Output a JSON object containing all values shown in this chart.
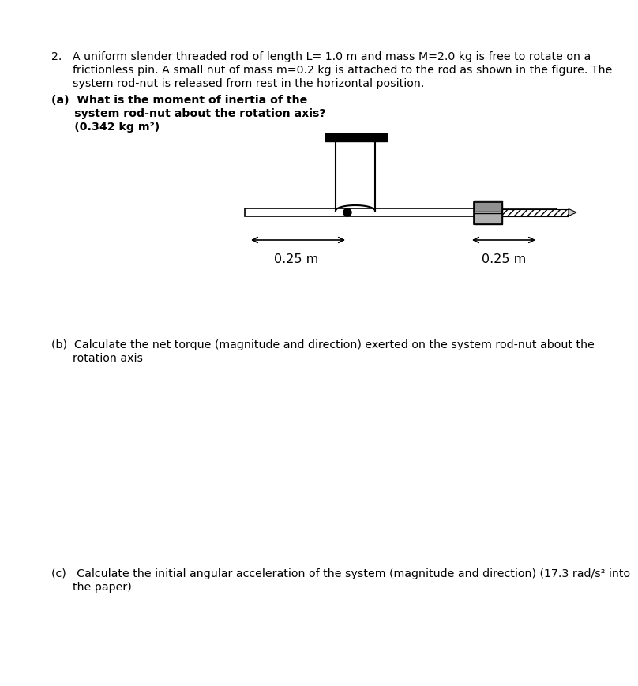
{
  "bg_color": "#ffffff",
  "text_color": "#000000",
  "question_text_line1": "2.   A uniform slender threaded rod of length L= 1.0 m and mass M=2.0 kg is free to rotate on a",
  "question_text_line2": "      frictionless pin. A small nut of mass m=0.2 kg is attached to the rod as shown in the figure. The",
  "question_text_line3": "      system rod-nut is released from rest in the horizontal position.",
  "part_a_line1": "(a)  What is the moment of inertia of the",
  "part_a_line2": "      system rod-nut about the rotation axis?",
  "part_a_line3": "      (0.342 kg m²)",
  "part_b_line1": "(b)  Calculate the net torque (magnitude and direction) exerted on the system rod-nut about the",
  "part_b_line2": "      rotation axis",
  "part_c_line1": "(c)   Calculate the initial angular acceleration of the system (magnitude and direction) (17.3 rad/s² into",
  "part_c_line2": "      the paper)",
  "label1": "0.25 m",
  "label2": "0.25 m",
  "font_size": 10.2
}
